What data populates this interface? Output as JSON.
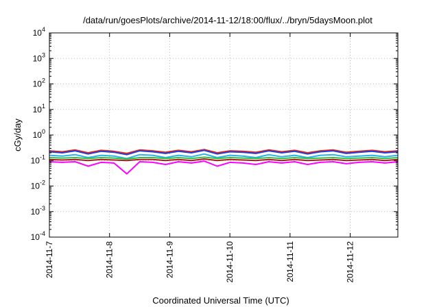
{
  "chart_data": {
    "type": "line",
    "title": "/data/run/goesPlots/archive/2014-11-12/18:00/flux/../bryn/5daysMoon.plot",
    "xlabel": "Coordinated Universal Time (UTC)",
    "ylabel": "cGy/day",
    "y_scale": "log",
    "ylim": [
      0.0001,
      10000
    ],
    "xlim": [
      "2014-11-07",
      "2014-11-12 19:00"
    ],
    "x_ticks": [
      "2014-11-7",
      "2014-11-8",
      "2014-11-9",
      "2014-11-10",
      "2014-11-11",
      "2014-11-12"
    ],
    "y_ticks": [
      {
        "base": "10",
        "exp": "-4"
      },
      {
        "base": "10",
        "exp": "-3"
      },
      {
        "base": "10",
        "exp": "-2"
      },
      {
        "base": "10",
        "exp": "-1"
      },
      {
        "base": "10",
        "exp": "0"
      },
      {
        "base": "10",
        "exp": "1"
      },
      {
        "base": "10",
        "exp": "2"
      },
      {
        "base": "10",
        "exp": "3"
      },
      {
        "base": "10",
        "exp": "4"
      }
    ],
    "grid": true,
    "legend": "none",
    "series": [
      {
        "color": "#e8221b",
        "values": [
          0.24,
          0.22,
          0.26,
          0.2,
          0.25,
          0.23,
          0.19,
          0.26,
          0.24,
          0.21,
          0.25,
          0.22,
          0.27,
          0.2,
          0.24,
          0.23,
          0.21,
          0.26,
          0.22,
          0.25,
          0.2,
          0.24,
          0.26,
          0.21,
          0.23,
          0.25,
          0.22,
          0.24
        ]
      },
      {
        "color": "#2040d8",
        "values": [
          0.22,
          0.2,
          0.24,
          0.18,
          0.23,
          0.21,
          0.17,
          0.24,
          0.22,
          0.19,
          0.23,
          0.2,
          0.25,
          0.18,
          0.22,
          0.21,
          0.19,
          0.24,
          0.2,
          0.23,
          0.18,
          0.22,
          0.24,
          0.19,
          0.21,
          0.23,
          0.2,
          0.22
        ]
      },
      {
        "color": "#28b0e8",
        "values": [
          0.16,
          0.15,
          0.17,
          0.13,
          0.16,
          0.15,
          0.12,
          0.17,
          0.16,
          0.13,
          0.16,
          0.14,
          0.18,
          0.13,
          0.16,
          0.15,
          0.13,
          0.17,
          0.14,
          0.16,
          0.13,
          0.16,
          0.17,
          0.14,
          0.15,
          0.16,
          0.14,
          0.16
        ]
      },
      {
        "color": "#2fc04a",
        "values": [
          0.13,
          0.125,
          0.13,
          0.12,
          0.13,
          0.125,
          0.115,
          0.13,
          0.13,
          0.12,
          0.13,
          0.12,
          0.135,
          0.12,
          0.13,
          0.125,
          0.12,
          0.13,
          0.12,
          0.13,
          0.12,
          0.125,
          0.13,
          0.12,
          0.125,
          0.13,
          0.12,
          0.13
        ]
      },
      {
        "color": "#b01818",
        "values": [
          0.11,
          0.105,
          0.11,
          0.1,
          0.11,
          0.105,
          0.1,
          0.11,
          0.11,
          0.1,
          0.11,
          0.1,
          0.115,
          0.1,
          0.11,
          0.105,
          0.1,
          0.11,
          0.1,
          0.11,
          0.1,
          0.105,
          0.11,
          0.1,
          0.105,
          0.11,
          0.1,
          0.11
        ]
      },
      {
        "color": "#ff00ff",
        "values": [
          0.09,
          0.085,
          0.09,
          0.06,
          0.085,
          0.08,
          0.03,
          0.09,
          0.085,
          0.07,
          0.09,
          0.08,
          0.095,
          0.06,
          0.085,
          0.08,
          0.07,
          0.09,
          0.08,
          0.09,
          0.07,
          0.085,
          0.09,
          0.075,
          0.085,
          0.09,
          0.08,
          0.09
        ]
      }
    ]
  }
}
